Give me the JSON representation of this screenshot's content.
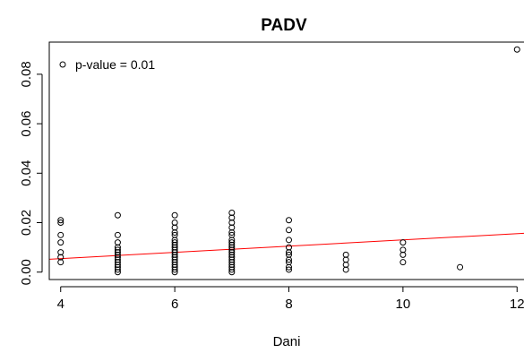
{
  "chart_data": {
    "type": "scatter",
    "title": "PADV",
    "xlabel": "Dani",
    "ylabel": "",
    "xlim": [
      3.8,
      12.2
    ],
    "ylim": [
      -0.003,
      0.093
    ],
    "xticks": [
      4,
      6,
      8,
      10,
      12
    ],
    "yticks": [
      0.0,
      0.02,
      0.04,
      0.06,
      0.08
    ],
    "xtick_labels": [
      "4",
      "6",
      "8",
      "10",
      "12"
    ],
    "ytick_labels": [
      "0.00",
      "0.02",
      "0.04",
      "0.06",
      "0.08"
    ],
    "grid": false,
    "legend": {
      "position": "top-left",
      "entries": [
        "p-value = 0.01"
      ]
    },
    "colors": {
      "points": "#000000",
      "fit_line": "#ff0000",
      "frame": "#000000"
    },
    "points": [
      {
        "x": 4,
        "y": 0.021
      },
      {
        "x": 4,
        "y": 0.02
      },
      {
        "x": 4,
        "y": 0.015
      },
      {
        "x": 4,
        "y": 0.012
      },
      {
        "x": 4,
        "y": 0.008
      },
      {
        "x": 4,
        "y": 0.006
      },
      {
        "x": 4,
        "y": 0.004
      },
      {
        "x": 5,
        "y": 0.023
      },
      {
        "x": 5,
        "y": 0.015
      },
      {
        "x": 5,
        "y": 0.012
      },
      {
        "x": 5,
        "y": 0.01
      },
      {
        "x": 5,
        "y": 0.009
      },
      {
        "x": 5,
        "y": 0.008
      },
      {
        "x": 5,
        "y": 0.007
      },
      {
        "x": 5,
        "y": 0.006
      },
      {
        "x": 5,
        "y": 0.005
      },
      {
        "x": 5,
        "y": 0.004
      },
      {
        "x": 5,
        "y": 0.003
      },
      {
        "x": 5,
        "y": 0.002
      },
      {
        "x": 5,
        "y": 0.001
      },
      {
        "x": 5,
        "y": 0.0
      },
      {
        "x": 6,
        "y": 0.023
      },
      {
        "x": 6,
        "y": 0.02
      },
      {
        "x": 6,
        "y": 0.018
      },
      {
        "x": 6,
        "y": 0.016
      },
      {
        "x": 6,
        "y": 0.015
      },
      {
        "x": 6,
        "y": 0.013
      },
      {
        "x": 6,
        "y": 0.012
      },
      {
        "x": 6,
        "y": 0.011
      },
      {
        "x": 6,
        "y": 0.01
      },
      {
        "x": 6,
        "y": 0.009
      },
      {
        "x": 6,
        "y": 0.008
      },
      {
        "x": 6,
        "y": 0.007
      },
      {
        "x": 6,
        "y": 0.006
      },
      {
        "x": 6,
        "y": 0.005
      },
      {
        "x": 6,
        "y": 0.004
      },
      {
        "x": 6,
        "y": 0.003
      },
      {
        "x": 6,
        "y": 0.002
      },
      {
        "x": 6,
        "y": 0.001
      },
      {
        "x": 6,
        "y": 0.0
      },
      {
        "x": 7,
        "y": 0.024
      },
      {
        "x": 7,
        "y": 0.022
      },
      {
        "x": 7,
        "y": 0.02
      },
      {
        "x": 7,
        "y": 0.018
      },
      {
        "x": 7,
        "y": 0.016
      },
      {
        "x": 7,
        "y": 0.015
      },
      {
        "x": 7,
        "y": 0.013
      },
      {
        "x": 7,
        "y": 0.012
      },
      {
        "x": 7,
        "y": 0.011
      },
      {
        "x": 7,
        "y": 0.01
      },
      {
        "x": 7,
        "y": 0.009
      },
      {
        "x": 7,
        "y": 0.008
      },
      {
        "x": 7,
        "y": 0.007
      },
      {
        "x": 7,
        "y": 0.006
      },
      {
        "x": 7,
        "y": 0.005
      },
      {
        "x": 7,
        "y": 0.004
      },
      {
        "x": 7,
        "y": 0.003
      },
      {
        "x": 7,
        "y": 0.002
      },
      {
        "x": 7,
        "y": 0.001
      },
      {
        "x": 7,
        "y": 0.0
      },
      {
        "x": 8,
        "y": 0.021
      },
      {
        "x": 8,
        "y": 0.017
      },
      {
        "x": 8,
        "y": 0.013
      },
      {
        "x": 8,
        "y": 0.01
      },
      {
        "x": 8,
        "y": 0.008
      },
      {
        "x": 8,
        "y": 0.007
      },
      {
        "x": 8,
        "y": 0.005
      },
      {
        "x": 8,
        "y": 0.004
      },
      {
        "x": 8,
        "y": 0.002
      },
      {
        "x": 8,
        "y": 0.001
      },
      {
        "x": 9,
        "y": 0.007
      },
      {
        "x": 9,
        "y": 0.005
      },
      {
        "x": 9,
        "y": 0.003
      },
      {
        "x": 9,
        "y": 0.001
      },
      {
        "x": 10,
        "y": 0.012
      },
      {
        "x": 10,
        "y": 0.009
      },
      {
        "x": 10,
        "y": 0.007
      },
      {
        "x": 10,
        "y": 0.004
      },
      {
        "x": 11,
        "y": 0.002
      },
      {
        "x": 12,
        "y": 0.09
      }
    ],
    "fit_line": {
      "x": [
        3.8,
        12.2
      ],
      "y": [
        0.0052,
        0.0158
      ]
    }
  }
}
